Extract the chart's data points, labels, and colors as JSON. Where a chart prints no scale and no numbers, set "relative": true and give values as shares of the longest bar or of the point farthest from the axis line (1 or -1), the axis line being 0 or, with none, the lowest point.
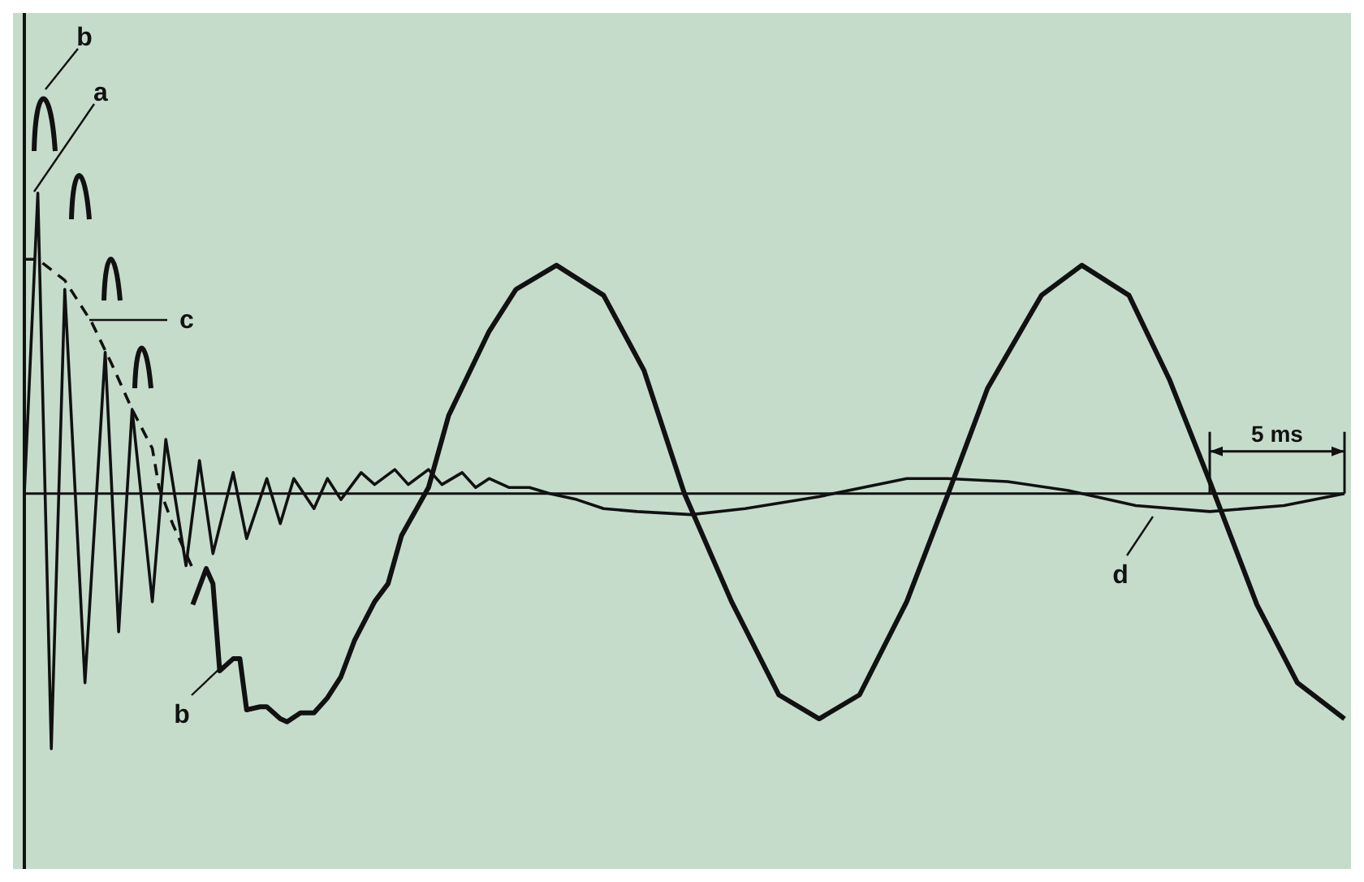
{
  "chart_data": {
    "type": "line",
    "relative": true,
    "tick_labels": false,
    "grid": false,
    "legend": false,
    "marker": "none",
    "categories": [
      null,
      null,
      null,
      null,
      null,
      null,
      null,
      null,
      null,
      null,
      null,
      null,
      null,
      null,
      null,
      null,
      null,
      null,
      null,
      null,
      null,
      null,
      null,
      null,
      null,
      null,
      null,
      null,
      null,
      null,
      null,
      null,
      null,
      null,
      null,
      null,
      null,
      null,
      null,
      null,
      null,
      null,
      null,
      null,
      null,
      null,
      null,
      null,
      null,
      null,
      null,
      null,
      null,
      null,
      null,
      null,
      null,
      null,
      null,
      null,
      null,
      null,
      null,
      null,
      null,
      null,
      null,
      null,
      null,
      null,
      null,
      null,
      null,
      null,
      null,
      null,
      null,
      null,
      null,
      null,
      null,
      null,
      null,
      null,
      null,
      null,
      null,
      null,
      null,
      null,
      null,
      null,
      null,
      null,
      null,
      null,
      null,
      null,
      null,
      null,
      null,
      null,
      null,
      null,
      null,
      null,
      null,
      null,
      null,
      null,
      null,
      null,
      null,
      null,
      null,
      null,
      null,
      null,
      null,
      null,
      null,
      null,
      null,
      null,
      null,
      null,
      null,
      null,
      null,
      null,
      null,
      null,
      null,
      null,
      null,
      null,
      null,
      null,
      null,
      null,
      null,
      null,
      null,
      null,
      null,
      null,
      null,
      null,
      null,
      null,
      null,
      null,
      null,
      null,
      null,
      null,
      null,
      null,
      null,
      null,
      null,
      null,
      null,
      null,
      null,
      null,
      null,
      null,
      null,
      null,
      null,
      null,
      null,
      null,
      null,
      null,
      null,
      null,
      null,
      null,
      null,
      null,
      null,
      null,
      null,
      null,
      null,
      null,
      null,
      null,
      null,
      null,
      null,
      null,
      null,
      null,
      null
    ],
    "series": [
      {
        "color": "#111111",
        "line_style": "solid",
        "values": [
          0,
          null,
          1.0,
          null,
          -0.85,
          null,
          0.68,
          null,
          null,
          -0.63,
          null,
          null,
          0.47,
          null,
          -0.46,
          null,
          0.28,
          null,
          null,
          -0.36,
          null,
          0.18,
          null,
          null,
          -0.24,
          null,
          0.11,
          null,
          -0.2,
          null,
          null,
          0.07,
          null,
          -0.15,
          null,
          null,
          0.05,
          null,
          -0.1,
          null,
          0.05,
          null,
          null,
          -0.05,
          null,
          0.05,
          null,
          -0.02,
          null,
          null,
          0.07,
          null,
          0.03,
          null,
          null,
          0.08,
          null,
          0.03,
          null,
          null,
          0.08,
          null,
          0.03,
          null,
          null,
          0.07,
          null,
          0.02,
          null,
          0.05,
          null,
          null,
          0.02,
          null,
          null,
          0.02,
          null,
          null,
          0,
          null,
          null,
          null,
          -0.02,
          null,
          null,
          null,
          -0.05,
          null,
          null,
          null,
          null,
          -0.06,
          null,
          null,
          null,
          null,
          null,
          null,
          null,
          -0.07,
          null,
          null,
          null,
          null,
          null,
          null,
          null,
          -0.05,
          null,
          null,
          null,
          null,
          null,
          null,
          null,
          null,
          null,
          null,
          -0.01,
          null,
          null,
          null,
          null,
          null,
          null,
          null,
          null,
          null,
          null,
          null,
          null,
          0.05,
          null,
          null,
          null,
          null,
          null,
          0.05,
          null,
          null,
          null,
          null,
          null,
          null,
          null,
          null,
          0.04,
          null,
          null,
          null,
          null,
          null,
          null,
          null,
          null,
          0.01,
          null,
          null,
          null,
          null,
          null,
          null,
          null,
          null,
          null,
          -0.04,
          null,
          null,
          null,
          null,
          null,
          null,
          null,
          null,
          null,
          null,
          -0.06,
          null,
          null,
          null,
          null,
          null,
          null,
          null,
          null,
          null,
          null,
          -0.04,
          null,
          null,
          null,
          null,
          null,
          null,
          null,
          null,
          0
        ]
      },
      {
        "color": "#111111",
        "line_style": "solid",
        "values": [
          null,
          null,
          null,
          null,
          null,
          null,
          null,
          null,
          null,
          null,
          null,
          null,
          null,
          null,
          null,
          null,
          null,
          null,
          null,
          null,
          null,
          null,
          null,
          null,
          null,
          -0.37,
          null,
          -0.25,
          -0.3,
          -0.59,
          null,
          -0.55,
          -0.55,
          -0.72,
          null,
          -0.71,
          -0.71,
          null,
          -0.75,
          -0.76,
          null,
          -0.73,
          null,
          -0.73,
          null,
          -0.68,
          null,
          -0.61,
          null,
          -0.49,
          null,
          null,
          -0.36,
          null,
          -0.3,
          null,
          -0.14,
          null,
          null,
          null,
          0.02,
          null,
          null,
          0.26,
          null,
          null,
          null,
          null,
          null,
          0.54,
          null,
          null,
          null,
          0.68,
          null,
          null,
          null,
          null,
          null,
          0.76,
          null,
          null,
          null,
          null,
          null,
          null,
          0.66,
          null,
          null,
          null,
          null,
          null,
          0.41,
          null,
          null,
          null,
          null,
          null,
          0,
          null,
          null,
          null,
          null,
          null,
          null,
          -0.36,
          null,
          null,
          null,
          null,
          null,
          null,
          -0.67,
          null,
          null,
          null,
          null,
          null,
          -0.75,
          null,
          null,
          null,
          null,
          null,
          -0.67,
          null,
          null,
          null,
          null,
          null,
          null,
          -0.36,
          null,
          null,
          null,
          null,
          null,
          -0.01,
          null,
          null,
          null,
          null,
          null,
          0.35,
          null,
          null,
          null,
          null,
          null,
          null,
          null,
          0.66,
          null,
          null,
          null,
          null,
          null,
          0.76,
          null,
          null,
          null,
          null,
          null,
          null,
          0.66,
          null,
          null,
          null,
          null,
          null,
          0.38,
          null,
          null,
          null,
          null,
          null,
          0.04,
          null,
          null,
          null,
          null,
          null,
          null,
          -0.37,
          null,
          null,
          null,
          null,
          null,
          -0.63,
          null,
          null,
          null,
          null,
          null,
          null,
          -0.75
        ]
      },
      {
        "color": "#111111",
        "line_style": "dashed",
        "values": [
          0.78,
          null,
          0.78,
          null,
          null,
          null,
          0.71,
          null,
          null,
          null,
          0.57,
          null,
          null,
          0.43,
          null,
          null,
          0.28,
          null,
          null,
          0.15,
          0.02,
          null,
          -0.1,
          null,
          null,
          -0.25,
          null,
          null,
          null,
          null,
          null,
          null,
          null,
          null,
          null,
          null,
          null,
          null,
          null,
          null,
          null,
          null,
          null,
          null,
          null,
          null,
          null,
          null,
          null,
          null,
          null,
          null,
          null,
          null,
          null,
          null,
          null,
          null,
          null,
          null,
          null,
          null,
          null,
          null,
          null,
          null,
          null,
          null,
          null,
          null,
          null,
          null,
          null,
          null,
          null,
          null,
          null,
          null,
          null,
          null,
          null,
          null,
          null,
          null,
          null,
          null,
          null,
          null,
          null,
          null,
          null,
          null,
          null,
          null,
          null,
          null,
          null,
          null,
          null,
          null,
          null,
          null,
          null,
          null,
          null,
          null,
          null,
          null,
          null,
          null,
          null,
          null,
          null,
          null,
          null,
          null,
          null,
          null,
          null,
          null,
          null,
          null,
          null,
          null,
          null,
          null,
          null,
          null,
          null,
          null,
          null,
          null,
          null,
          null,
          null,
          null,
          null,
          null,
          null,
          null,
          null,
          null,
          null,
          null,
          null,
          null,
          null,
          null,
          null,
          null,
          null,
          null,
          null,
          null,
          null,
          null,
          null,
          null,
          null,
          null,
          null,
          null,
          null,
          null,
          null,
          null,
          null,
          null,
          null,
          null,
          null,
          null,
          null,
          null,
          null,
          null,
          null,
          null,
          null,
          null,
          null,
          null,
          null,
          null,
          null,
          null,
          null,
          null,
          null,
          null,
          null,
          null,
          null,
          null,
          null,
          null,
          null
        ]
      }
    ],
    "annotations": [
      "b",
      "a",
      "c",
      "b",
      "d",
      "5 ms"
    ]
  }
}
